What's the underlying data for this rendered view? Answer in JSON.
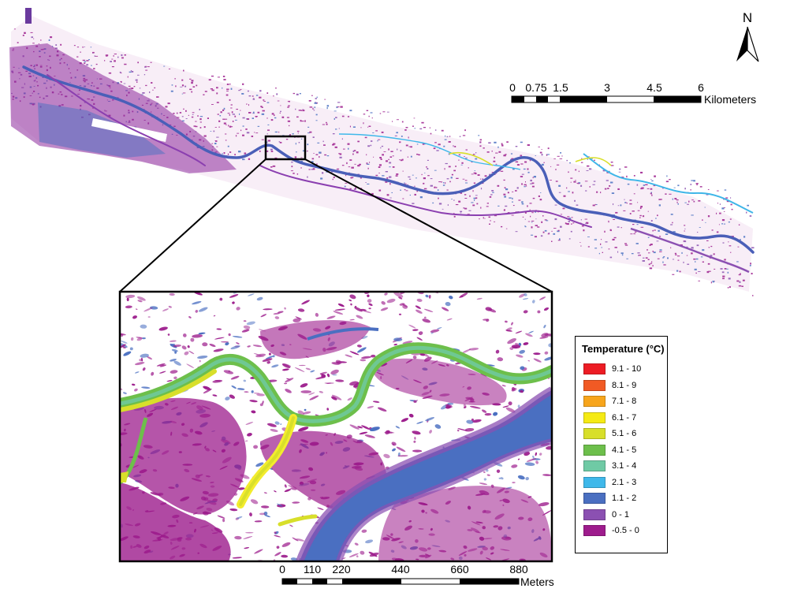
{
  "map": {
    "north_label": "N",
    "overview_scalebar": {
      "tick_labels": [
        "0",
        "0.75",
        "1.5",
        "3",
        "4.5",
        "6"
      ],
      "unit": "Kilometers"
    },
    "inset_scalebar": {
      "tick_labels": [
        "0",
        "110",
        "220",
        "440",
        "660",
        "880"
      ],
      "unit": "Meters"
    },
    "colors": {
      "magenta": "#9c1c8c",
      "purple": "#8a4fb0",
      "blue": "#4a6fc1",
      "cyan": "#3fb6e8",
      "teal": "#6cc9a4",
      "green": "#72c04e",
      "yellow_green": "#d4df3c",
      "yellow": "#f3ec2d"
    }
  },
  "legend": {
    "title": "Temperature (°C)",
    "items": [
      {
        "label": "9.1 - 10",
        "color": "#ed1c24"
      },
      {
        "label": "8.1 - 9",
        "color": "#f15a24"
      },
      {
        "label": "7.1 - 8",
        "color": "#f7a51c"
      },
      {
        "label": "6.1 - 7",
        "color": "#f5ea14"
      },
      {
        "label": "5.1 - 6",
        "color": "#d8df2a"
      },
      {
        "label": "4.1 - 5",
        "color": "#6dbf4b"
      },
      {
        "label": "3.1 - 4",
        "color": "#6fcaa5"
      },
      {
        "label": "2.1 - 3",
        "color": "#3fb8ea"
      },
      {
        "label": "1.1 - 2",
        "color": "#4a6fc1"
      },
      {
        "label": "0 - 1",
        "color": "#8b50b2"
      },
      {
        "label": "-0.5 - 0",
        "color": "#9e1c8d"
      }
    ]
  }
}
